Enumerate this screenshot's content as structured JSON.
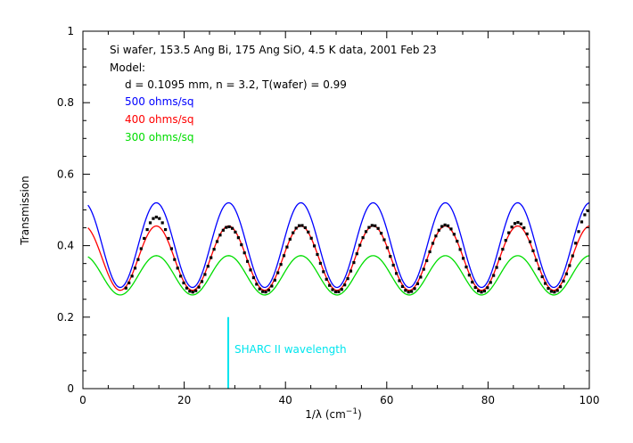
{
  "chart_data": {
    "type": "line",
    "xlabel": "1/λ (cm",
    "xlabel_sup": "−1",
    "xlabel_close": ")",
    "ylabel": "Transmission",
    "xlim": [
      0,
      100
    ],
    "ylim": [
      0,
      1
    ],
    "x_ticks": [
      0,
      20,
      40,
      60,
      80,
      100
    ],
    "y_ticks": [
      0,
      0.2,
      0.4,
      0.6,
      0.8,
      1
    ],
    "y_tick_labels": [
      "0",
      "0.2",
      "0.4",
      "0.6",
      "0.8",
      "1"
    ],
    "grid": false,
    "annotations": {
      "line1": "Si wafer, 153.5 Ang Bi, 175 Ang SiO, 4.5 K data, 2001 Feb 23",
      "line2": "Model:",
      "line3": "d = 0.1095 mm, n = 3.2, T(wafer) = 0.99"
    },
    "series": [
      {
        "name": "500 ohms/sq",
        "color": "#0000ff",
        "model": {
          "x_start": 1,
          "x_end": 100,
          "period": 14.27,
          "peak_x": 14.5,
          "min": 0.283,
          "max": 0.52
        }
      },
      {
        "name": "400 ohms/sq",
        "color": "#ff0000",
        "model": {
          "x_start": 1,
          "x_end": 100,
          "period": 14.27,
          "peak_x": 14.5,
          "min": 0.275,
          "max": 0.455
        }
      },
      {
        "name": "300 ohms/sq",
        "color": "#00dd00",
        "model": {
          "x_start": 1,
          "x_end": 100,
          "period": 14.27,
          "peak_x": 14.5,
          "min": 0.262,
          "max": 0.372
        }
      }
    ],
    "data_points": {
      "color": "#000000",
      "model": {
        "x_start": 8.5,
        "x_end": 100,
        "step": 0.6,
        "period": 14.27,
        "peak_x": 14.5,
        "min": 0.27,
        "max": 0.455
      },
      "peak_values": [
        0.48,
        0.453,
        0.457,
        0.457,
        0.458,
        0.465,
        0.5
      ]
    },
    "marker_line": {
      "x": 28.7,
      "y_from": 0,
      "y_to": 0.2,
      "label": "SHARC II wavelength",
      "color": "#00e5ee"
    }
  }
}
